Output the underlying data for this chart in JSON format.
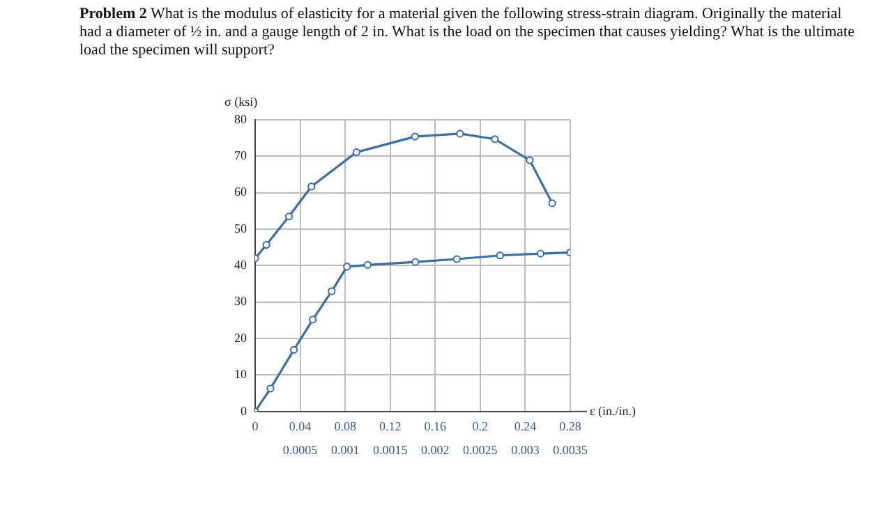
{
  "chart_data": {
    "type": "line",
    "title": "Problem 2",
    "subtitle": "What is the modulus of elasticity for a material given the following stress-strain diagram.  Originally the material had a diameter of ½ in. and a gauge length of 2 in.  What is the load on the specimen that causes yielding?  What is the ultimate load the specimen will support?",
    "xlabel": "ε (in./in.)",
    "ylabel": "σ (ksi)",
    "series": [
      {
        "color": "#3a6ea5",
        "x": [
          0,
          0.01,
          0.03,
          0.05,
          0.09,
          0.142,
          0.182,
          0.213,
          0.244,
          0.264
        ],
        "values": [
          42,
          45.7,
          53.5,
          61.7,
          71.1,
          75.4,
          76.2,
          74.7,
          68.9,
          57.1
        ]
      },
      {
        "color": "#3a6ea5",
        "axis": "x2",
        "x": [
          0,
          0.00017,
          0.00043,
          0.00064,
          0.00085,
          0.00102,
          0.00125,
          0.00178,
          0.00224,
          0.00272,
          0.00317,
          0.0035
        ],
        "values": [
          0,
          6.3,
          16.9,
          25.2,
          33.0,
          39.7,
          40.2,
          41.0,
          41.8,
          42.8,
          43.3,
          43.6
        ]
      }
    ],
    "xlim": [
      0,
      0.28
    ],
    "xticks": [
      0,
      0.04,
      0.08,
      0.12,
      0.16,
      0.2,
      0.24,
      0.28
    ],
    "x2lim": [
      0,
      0.0035
    ],
    "x2ticks": [
      0.0005,
      0.001,
      0.0015,
      0.002,
      0.0025,
      0.003,
      0.0035
    ],
    "ylim": [
      0,
      80
    ],
    "yticks": [
      0,
      10,
      20,
      30,
      40,
      50,
      60,
      70,
      80
    ],
    "grid": true,
    "marker": "circle",
    "line_style": "solid",
    "legend": false
  }
}
